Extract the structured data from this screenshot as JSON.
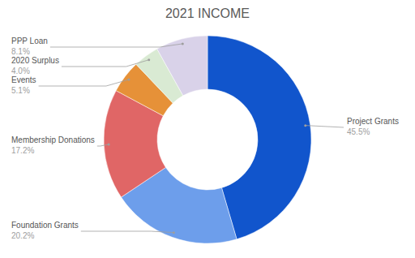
{
  "chart_data": {
    "type": "pie",
    "title": "2021 INCOME",
    "categories": [
      "Project Grants",
      "Foundation Grants",
      "Membership Donations",
      "Events",
      "2020 Surplus",
      "PPP Loan"
    ],
    "values": [
      45.5,
      20.2,
      17.2,
      5.1,
      4.0,
      8.1
    ],
    "value_labels": [
      "45.5%",
      "20.2%",
      "17.2%",
      "5.1%",
      "4.0%",
      "8.1%"
    ],
    "colors": [
      "#1155cc",
      "#6d9eeb",
      "#e06666",
      "#e69138",
      "#d9ead3",
      "#d9d2e9"
    ]
  }
}
